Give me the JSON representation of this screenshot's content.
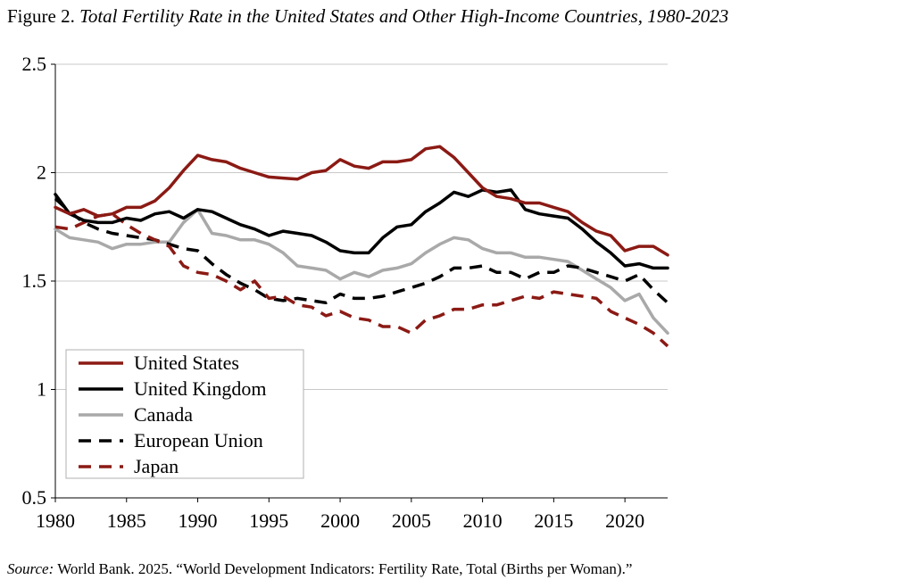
{
  "figure": {
    "prefix": "Figure 2.",
    "title": "Total Fertility Rate in the United States and Other High-Income Countries, 1980-2023"
  },
  "source": {
    "label": "Source:",
    "text": "World Bank. 2025. “World Development Indicators: Fertility Rate, Total (Births per Woman).”"
  },
  "chart_data": {
    "type": "line",
    "title": "Total Fertility Rate in the United States and Other High-Income Countries, 1980-2023",
    "xlabel": "",
    "ylabel": "",
    "xlim": [
      1980,
      2023
    ],
    "ylim": [
      0.5,
      2.5
    ],
    "xticks": [
      1980,
      1985,
      1990,
      1995,
      2000,
      2005,
      2010,
      2015,
      2020
    ],
    "xtick_labels": [
      "1980",
      "1985",
      "1990",
      "1995",
      "2000",
      "2005",
      "2010",
      "2015",
      "2020"
    ],
    "yticks": [
      0.5,
      1,
      1.5,
      2,
      2.5
    ],
    "ytick_labels": [
      "0.5",
      "1",
      "1.5",
      "2",
      "2.5"
    ],
    "grid": "horizontal",
    "legend_position": "bottom-left",
    "x": [
      1980,
      1981,
      1982,
      1983,
      1984,
      1985,
      1986,
      1987,
      1988,
      1989,
      1990,
      1991,
      1992,
      1993,
      1994,
      1995,
      1996,
      1997,
      1998,
      1999,
      2000,
      2001,
      2002,
      2003,
      2004,
      2005,
      2006,
      2007,
      2008,
      2009,
      2010,
      2011,
      2012,
      2013,
      2014,
      2015,
      2016,
      2017,
      2018,
      2019,
      2020,
      2021,
      2022,
      2023
    ],
    "series": [
      {
        "name": "United States",
        "color": "#8b1a14",
        "dash": "solid",
        "values": [
          1.84,
          1.81,
          1.83,
          1.8,
          1.81,
          1.84,
          1.84,
          1.87,
          1.93,
          2.01,
          2.08,
          2.06,
          2.05,
          2.02,
          2.0,
          1.98,
          1.975,
          1.97,
          2.0,
          2.01,
          2.06,
          2.03,
          2.02,
          2.05,
          2.05,
          2.06,
          2.11,
          2.12,
          2.07,
          2.0,
          1.93,
          1.89,
          1.88,
          1.86,
          1.86,
          1.84,
          1.82,
          1.77,
          1.73,
          1.71,
          1.64,
          1.66,
          1.66,
          1.62
        ]
      },
      {
        "name": "United Kingdom",
        "color": "#000000",
        "dash": "solid",
        "values": [
          1.9,
          1.81,
          1.78,
          1.77,
          1.77,
          1.79,
          1.78,
          1.81,
          1.82,
          1.79,
          1.83,
          1.82,
          1.79,
          1.76,
          1.74,
          1.71,
          1.73,
          1.72,
          1.71,
          1.68,
          1.64,
          1.63,
          1.63,
          1.7,
          1.75,
          1.76,
          1.82,
          1.86,
          1.91,
          1.89,
          1.92,
          1.91,
          1.92,
          1.83,
          1.81,
          1.8,
          1.79,
          1.74,
          1.68,
          1.63,
          1.57,
          1.58,
          1.56,
          1.56
        ]
      },
      {
        "name": "Canada",
        "color": "#a9a9a9",
        "dash": "solid",
        "values": [
          1.74,
          1.7,
          1.69,
          1.68,
          1.65,
          1.67,
          1.67,
          1.68,
          1.68,
          1.77,
          1.83,
          1.72,
          1.71,
          1.69,
          1.69,
          1.67,
          1.63,
          1.57,
          1.56,
          1.55,
          1.51,
          1.54,
          1.52,
          1.55,
          1.56,
          1.58,
          1.63,
          1.67,
          1.7,
          1.69,
          1.65,
          1.63,
          1.63,
          1.61,
          1.61,
          1.6,
          1.59,
          1.55,
          1.51,
          1.47,
          1.41,
          1.44,
          1.33,
          1.26
        ]
      },
      {
        "name": "European Union",
        "color": "#000000",
        "dash": "dashed",
        "values": [
          1.88,
          1.82,
          1.77,
          1.74,
          1.72,
          1.71,
          1.7,
          1.69,
          1.67,
          1.65,
          1.64,
          1.58,
          1.53,
          1.49,
          1.46,
          1.42,
          1.41,
          1.42,
          1.41,
          1.4,
          1.44,
          1.42,
          1.42,
          1.43,
          1.45,
          1.47,
          1.49,
          1.52,
          1.56,
          1.56,
          1.57,
          1.54,
          1.54,
          1.51,
          1.54,
          1.54,
          1.57,
          1.56,
          1.54,
          1.52,
          1.5,
          1.53,
          1.46,
          1.4
        ]
      },
      {
        "name": "Japan",
        "color": "#8b1a14",
        "dash": "dashed",
        "values": [
          1.75,
          1.74,
          1.77,
          1.8,
          1.81,
          1.76,
          1.72,
          1.69,
          1.66,
          1.57,
          1.54,
          1.53,
          1.5,
          1.46,
          1.5,
          1.42,
          1.43,
          1.39,
          1.38,
          1.34,
          1.36,
          1.33,
          1.32,
          1.29,
          1.29,
          1.26,
          1.32,
          1.34,
          1.37,
          1.37,
          1.39,
          1.39,
          1.41,
          1.43,
          1.42,
          1.45,
          1.44,
          1.43,
          1.42,
          1.36,
          1.33,
          1.3,
          1.26,
          1.2
        ]
      }
    ]
  }
}
